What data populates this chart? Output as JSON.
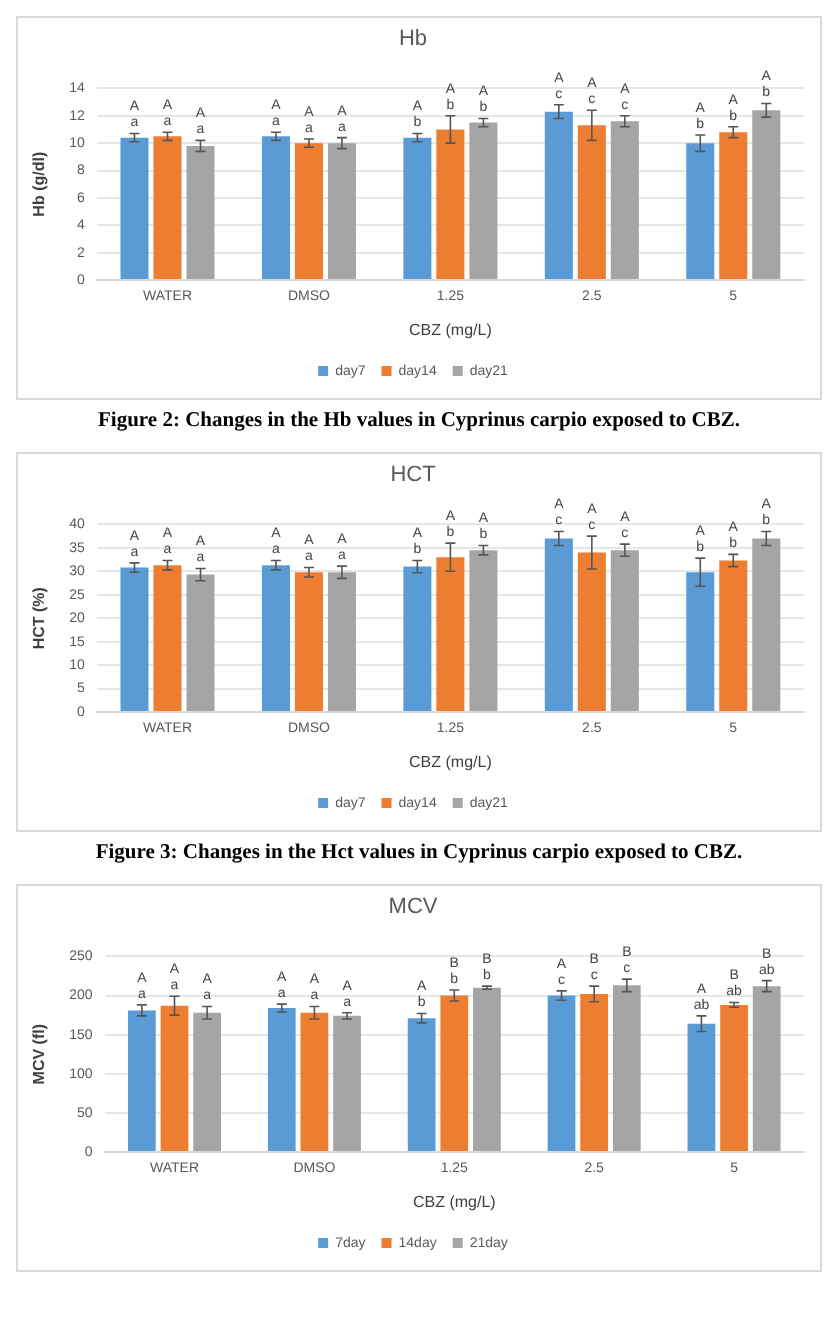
{
  "chart_data": [
    {
      "type": "bar",
      "title": "Hb",
      "xlabel": "CBZ (mg/L)",
      "ylabel": "Hb (g/dl)",
      "categories": [
        "WATER",
        "DMSO",
        "1.25",
        "2.5",
        "5"
      ],
      "ylim": [
        0,
        14
      ],
      "yticks": [
        0,
        2,
        4,
        6,
        8,
        10,
        12,
        14
      ],
      "grid": "y",
      "legend": "bottom",
      "series": [
        {
          "name": "day7",
          "color": "#5b9bd5",
          "values": [
            10.4,
            10.5,
            10.4,
            12.3,
            10.0
          ],
          "errors": [
            0.3,
            0.3,
            0.3,
            0.5,
            0.6
          ],
          "value_labels": [
            "A a",
            "A a",
            "A b",
            "A c",
            "A b"
          ]
        },
        {
          "name": "day14",
          "color": "#ed7d31",
          "values": [
            10.5,
            10.0,
            11.0,
            11.3,
            10.8
          ],
          "errors": [
            0.3,
            0.3,
            1.0,
            1.1,
            0.4
          ],
          "value_labels": [
            "A a",
            "A a",
            "A b",
            "A c",
            "A b"
          ]
        },
        {
          "name": "day21",
          "color": "#a5a5a5",
          "values": [
            9.8,
            10.0,
            11.5,
            11.6,
            12.4
          ],
          "errors": [
            0.4,
            0.4,
            0.3,
            0.4,
            0.5
          ],
          "value_labels": [
            "A a",
            "A a",
            "A b",
            "A c",
            "A b"
          ]
        }
      ],
      "annotations": [
        "Figure 2: Changes in the Hb values in Cyprinus carpio exposed to CBZ."
      ]
    },
    {
      "type": "bar",
      "title": "HCT",
      "xlabel": "CBZ (mg/L)",
      "ylabel": "HCT (%)",
      "categories": [
        "WATER",
        "DMSO",
        "1.25",
        "2.5",
        "5"
      ],
      "ylim": [
        0,
        40
      ],
      "yticks": [
        0,
        5,
        10,
        15,
        20,
        25,
        30,
        35,
        40
      ],
      "grid": "y",
      "legend": "bottom",
      "series": [
        {
          "name": "day7",
          "color": "#5b9bd5",
          "values": [
            30.8,
            31.3,
            31.0,
            37.0,
            29.8
          ],
          "errors": [
            1.0,
            1.0,
            1.3,
            1.5,
            3.0
          ],
          "value_labels": [
            "A a",
            "A a",
            "A b",
            "A c",
            "A b"
          ]
        },
        {
          "name": "day14",
          "color": "#ed7d31",
          "values": [
            31.3,
            29.8,
            33.0,
            34.0,
            32.3
          ],
          "errors": [
            1.0,
            1.0,
            3.0,
            3.5,
            1.3
          ],
          "value_labels": [
            "A a",
            "A a",
            "A b",
            "A c",
            "A b"
          ]
        },
        {
          "name": "day21",
          "color": "#a5a5a5",
          "values": [
            29.3,
            29.8,
            34.5,
            34.5,
            37.0
          ],
          "errors": [
            1.3,
            1.3,
            1.0,
            1.3,
            1.5
          ],
          "value_labels": [
            "A a",
            "A a",
            "A b",
            "A c",
            "A b"
          ]
        }
      ],
      "annotations": [
        "Figure 3: Changes in the Hct values in Cyprinus carpio exposed to CBZ."
      ]
    },
    {
      "type": "bar",
      "title": "MCV",
      "xlabel": "CBZ (mg/L)",
      "ylabel": "MCV (fl)",
      "categories": [
        "WATER",
        "DMSO",
        "1.25",
        "2.5",
        "5"
      ],
      "ylim": [
        0,
        250
      ],
      "yticks": [
        0,
        50,
        100,
        150,
        200,
        250
      ],
      "grid": "y",
      "legend": "bottom",
      "series": [
        {
          "name": "7day",
          "color": "#5b9bd5",
          "values": [
            181,
            184,
            171,
            200,
            164
          ],
          "errors": [
            7,
            5,
            6,
            6,
            10
          ],
          "value_labels": [
            "A a",
            "A a",
            "A b",
            "A c",
            "A ab"
          ]
        },
        {
          "name": "14day",
          "color": "#ed7d31",
          "values": [
            187,
            178,
            200,
            202,
            188
          ],
          "errors": [
            12,
            8,
            7,
            10,
            3
          ],
          "value_labels": [
            "A a",
            "A a",
            "B b",
            "B c",
            "B ab"
          ]
        },
        {
          "name": "21day",
          "color": "#a5a5a5",
          "values": [
            178,
            174,
            210,
            213,
            212
          ],
          "errors": [
            8,
            4,
            2,
            8,
            7
          ],
          "value_labels": [
            "A a",
            "A a",
            "B b",
            "B c",
            "B ab"
          ]
        }
      ]
    }
  ]
}
